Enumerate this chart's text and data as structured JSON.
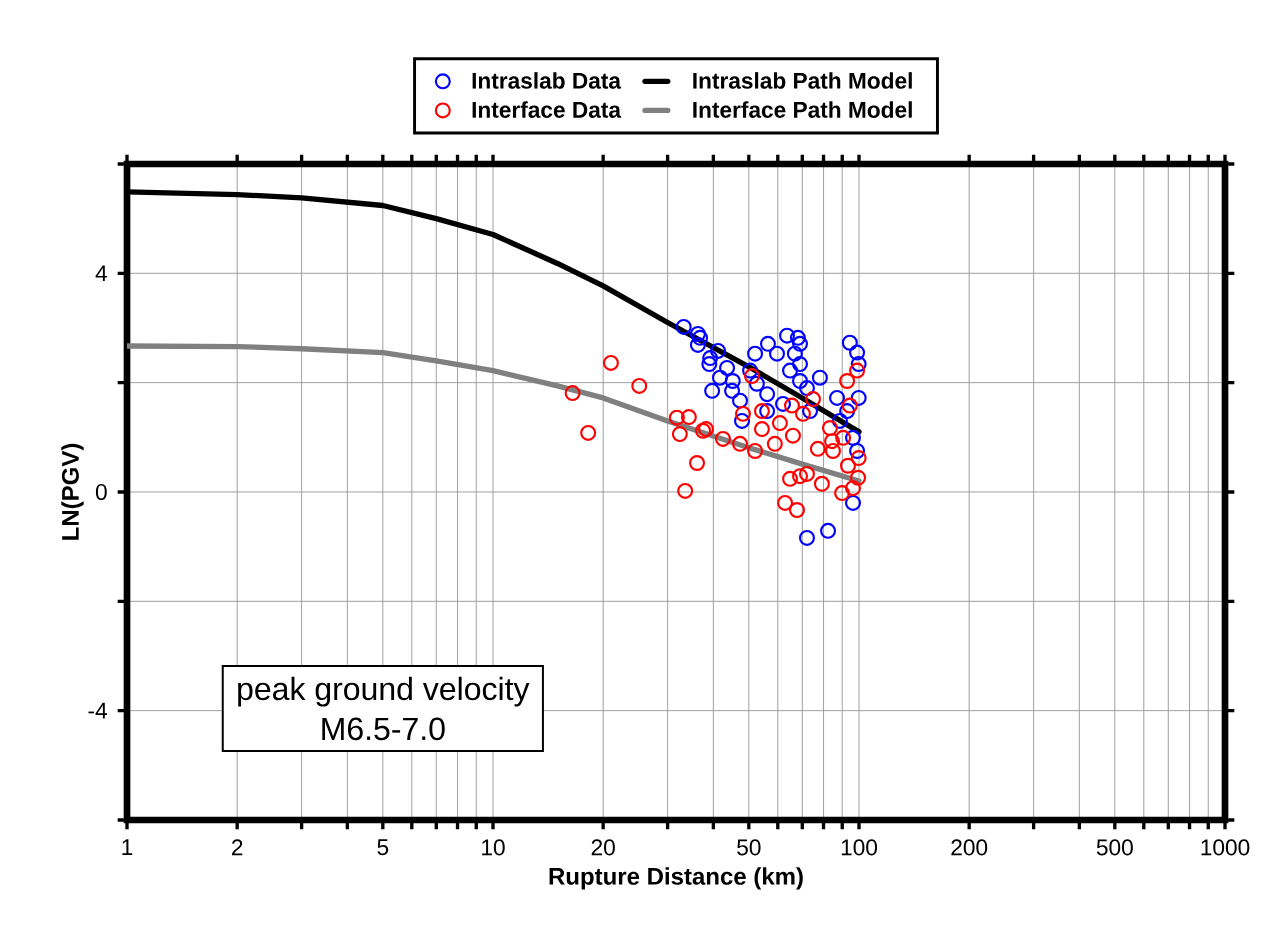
{
  "chart_data": {
    "type": "scatter",
    "xlabel": "Rupture Distance (km)",
    "ylabel": "LN(PGV)",
    "log": "x",
    "grid": true,
    "legend": "top",
    "xlim": [
      1,
      1000
    ],
    "ylim": [
      -6,
      6
    ],
    "xticks": [
      1,
      2,
      {
        "value": 3,
        "label": null
      },
      {
        "value": 4,
        "label": null
      },
      5,
      {
        "value": 6,
        "label": null
      },
      {
        "value": 7,
        "label": null
      },
      {
        "value": 8,
        "label": null
      },
      {
        "value": 9,
        "label": null
      },
      10,
      20,
      {
        "value": 30,
        "label": null
      },
      {
        "value": 40,
        "label": null
      },
      50,
      {
        "value": 60,
        "label": null
      },
      {
        "value": 70,
        "label": null
      },
      {
        "value": 80,
        "label": null
      },
      {
        "value": 90,
        "label": null
      },
      100,
      200,
      {
        "value": 300,
        "label": null
      },
      {
        "value": 400,
        "label": null
      },
      500,
      {
        "value": 600,
        "label": null
      },
      {
        "value": 700,
        "label": null
      },
      {
        "value": 800,
        "label": null
      },
      {
        "value": 900,
        "label": null
      },
      1000
    ],
    "yticks": [
      {
        "value": -6,
        "label": null
      },
      -4,
      {
        "value": -2,
        "label": null
      },
      0,
      {
        "value": 2,
        "label": null
      },
      4,
      {
        "value": 6,
        "label": null
      }
    ],
    "annotations": [
      "peak ground velocity",
      "M6.5-7.0"
    ],
    "series": [
      {
        "name": "Intraslab Data",
        "marker": "circle",
        "color": "#0000ff",
        "x": [
          33.2,
          36.3,
          36.3,
          39.7,
          39.0,
          36.8,
          39.2,
          41.2,
          43.6,
          45.2,
          45.0,
          47.3,
          47.9,
          52.0,
          56.4,
          59.7,
          63.6,
          68.1,
          69.0,
          64.8,
          69.0,
          69.0,
          72.1,
          78.2,
          73.5,
          62.0,
          56.1,
          52.6,
          94.4,
          98.8,
          99.8,
          99.8,
          87.1,
          88.7,
          96.3,
          72.1,
          82.3,
          96.3,
          98.8,
          56.1,
          50.4,
          41.7,
          66.8,
          92.8
        ],
        "values": [
          3.02,
          2.89,
          2.69,
          1.85,
          2.34,
          2.82,
          2.45,
          2.58,
          2.27,
          2.03,
          1.85,
          1.67,
          1.3,
          2.53,
          2.71,
          2.53,
          2.86,
          2.82,
          2.71,
          2.22,
          2.34,
          2.03,
          1.9,
          2.09,
          1.48,
          1.61,
          1.79,
          1.98,
          2.73,
          2.55,
          2.34,
          1.72,
          1.72,
          1.3,
          0.99,
          -0.84,
          -0.71,
          -0.2,
          0.75,
          1.48,
          2.22,
          2.09,
          2.53,
          1.48
        ]
      },
      {
        "name": "Intraslab Path Model",
        "type": "line",
        "marker": "none",
        "line_style": "solid",
        "color": "#000000",
        "x": [
          1,
          2,
          3,
          5,
          7,
          10,
          15,
          20,
          30,
          50,
          70,
          100
        ],
        "values": [
          5.49,
          5.44,
          5.38,
          5.24,
          5.0,
          4.71,
          4.18,
          3.77,
          3.1,
          2.29,
          1.72,
          1.1
        ]
      },
      {
        "name": "Interface Data",
        "marker": "circle",
        "color": "#ff0000",
        "x": [
          21.0,
          25.1,
          16.5,
          18.2,
          31.8,
          34.3,
          32.4,
          38.2,
          36.1,
          33.5,
          37.5,
          42.5,
          47.3,
          48.2,
          52.0,
          54.3,
          54.3,
          60.8,
          58.9,
          65.6,
          66.0,
          64.8,
          69.0,
          72.1,
          62.8,
          67.7,
          74.9,
          79.2,
          77.2,
          84.4,
          83.3,
          84.9,
          90.5,
          92.8,
          98.8,
          94.4,
          89.9,
          96.3,
          99.4,
          99.8,
          51.0,
          70.3,
          93.3
        ],
        "values": [
          2.36,
          1.94,
          1.81,
          1.08,
          1.36,
          1.37,
          1.06,
          1.15,
          0.53,
          0.02,
          1.12,
          0.97,
          0.88,
          1.43,
          0.75,
          1.48,
          1.15,
          1.26,
          0.88,
          1.58,
          1.03,
          0.24,
          0.29,
          0.33,
          -0.2,
          -0.33,
          1.7,
          0.15,
          0.79,
          0.93,
          1.17,
          0.75,
          0.99,
          2.03,
          2.22,
          1.58,
          -0.02,
          0.07,
          0.26,
          0.62,
          2.12,
          1.43,
          0.48
        ]
      },
      {
        "name": "Interface Path Model",
        "type": "line",
        "marker": "none",
        "line_style": "solid",
        "color": "#808080",
        "x": [
          1,
          2,
          3,
          5,
          7,
          10,
          15,
          20,
          30,
          50,
          70,
          100
        ],
        "values": [
          2.67,
          2.66,
          2.62,
          2.55,
          2.4,
          2.22,
          1.94,
          1.72,
          1.3,
          0.81,
          0.51,
          0.2
        ]
      }
    ]
  }
}
